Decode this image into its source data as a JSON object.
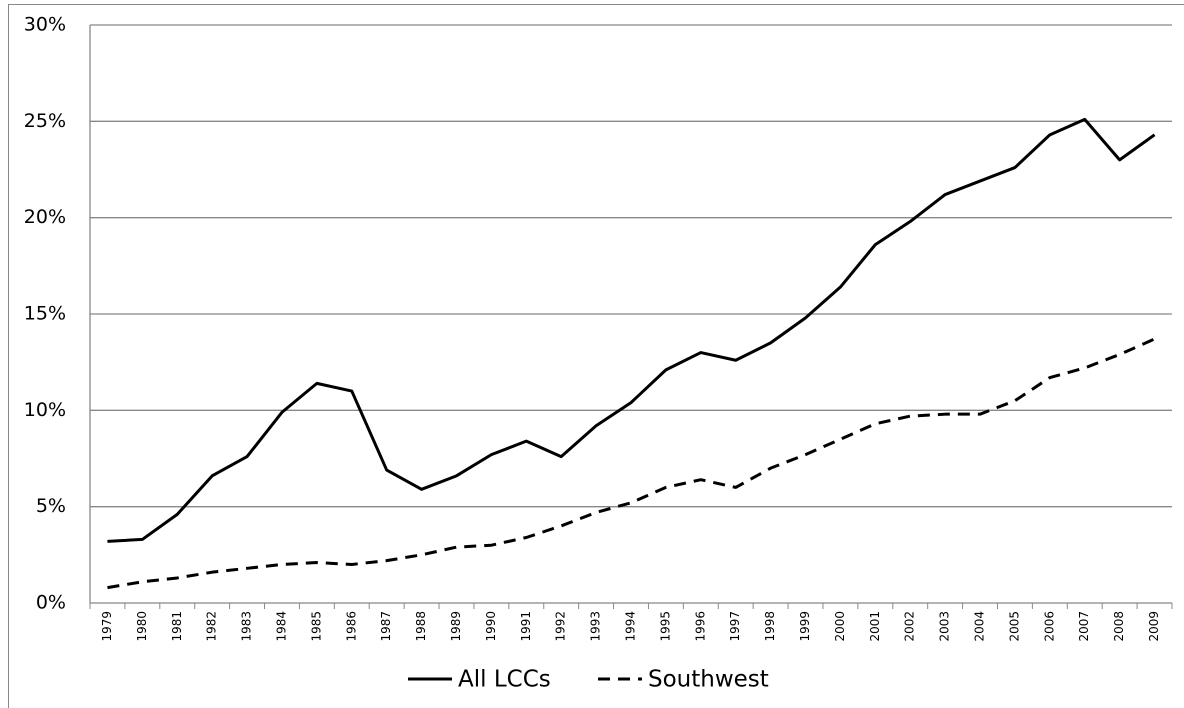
{
  "chart_data": {
    "type": "line",
    "categories": [
      "1979",
      "1980",
      "1981",
      "1982",
      "1983",
      "1984",
      "1985",
      "1986",
      "1987",
      "1988",
      "1989",
      "1990",
      "1991",
      "1992",
      "1993",
      "1994",
      "1995",
      "1996",
      "1997",
      "1998",
      "1999",
      "2000",
      "2001",
      "2002",
      "2003",
      "2004",
      "2005",
      "2006",
      "2007",
      "2008",
      "2009"
    ],
    "series": [
      {
        "name": "All LCCs",
        "color": "#000000",
        "dash": "none",
        "values": [
          3.2,
          3.3,
          4.6,
          6.6,
          7.6,
          9.9,
          11.4,
          11.0,
          6.9,
          5.9,
          6.6,
          7.7,
          8.4,
          7.6,
          9.2,
          10.4,
          12.1,
          13.0,
          12.6,
          13.5,
          14.8,
          16.4,
          18.6,
          19.8,
          21.2,
          21.9,
          22.6,
          24.3,
          25.1,
          23.0,
          24.3
        ]
      },
      {
        "name": "Southwest",
        "color": "#000000",
        "dash": "12 8",
        "values": [
          0.8,
          1.1,
          1.3,
          1.6,
          1.8,
          2.0,
          2.1,
          2.0,
          2.2,
          2.5,
          2.9,
          3.0,
          3.4,
          4.0,
          4.7,
          5.2,
          6.0,
          6.4,
          6.0,
          7.0,
          7.7,
          8.5,
          9.3,
          9.7,
          9.8,
          9.8,
          10.5,
          11.7,
          12.2,
          12.9,
          13.7
        ]
      }
    ],
    "ylim": [
      0,
      30
    ],
    "yticks": [
      {
        "value": 0,
        "label": "0%"
      },
      {
        "value": 5,
        "label": "5%"
      },
      {
        "value": 10,
        "label": "10%"
      },
      {
        "value": 15,
        "label": "15%"
      },
      {
        "value": 20,
        "label": "20%"
      },
      {
        "value": 25,
        "label": "25%"
      },
      {
        "value": 30,
        "label": "30%"
      }
    ],
    "grid": true,
    "legend": "bottom"
  }
}
